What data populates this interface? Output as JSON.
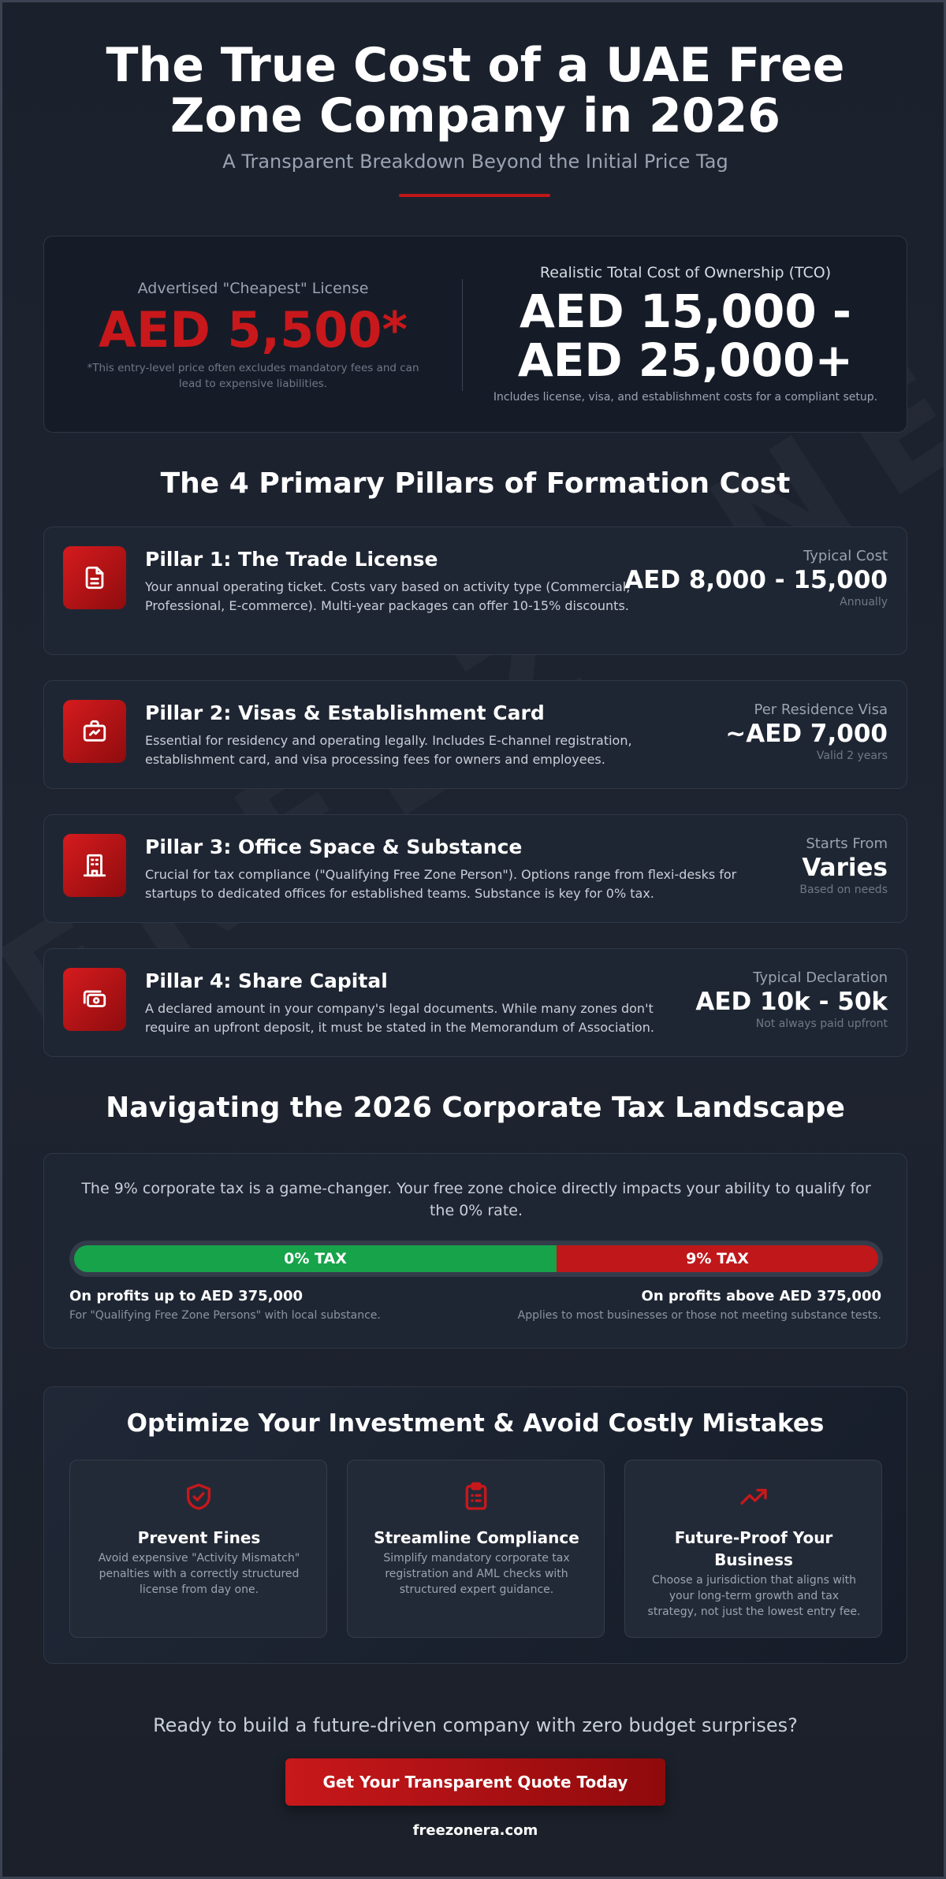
{
  "header": {
    "title": "The True Cost of a UAE Free Zone Company in 2026",
    "subtitle": "A Transparent Breakdown Beyond the Initial Price Tag"
  },
  "watermark": "FREEZONERA.COM",
  "comparison": {
    "advertised_label": "Advertised \"Cheapest\" License",
    "advertised_price": "AED 5,500*",
    "advertised_note": "*This entry-level price often excludes mandatory fees and can lead to expensive liabilities.",
    "tco_label": "Realistic Total Cost of Ownership (TCO)",
    "tco_price_line1": "AED 15,000 -",
    "tco_price_line2": "AED 25,000+",
    "tco_note": "Includes license, visa, and establishment costs for a compliant setup."
  },
  "pillars_section": {
    "title": "The 4 Primary Pillars of Formation Cost",
    "items": [
      {
        "icon": "document-icon",
        "name": "Pillar 1: The Trade License",
        "description": "Your annual operating ticket. Costs vary based on activity type (Commercial, Professional, E-commerce). Multi-year packages can offer 10-15% discounts.",
        "cost_label": "Typical Cost",
        "cost_value": "AED 8,000 - 15,000",
        "cost_note": "Annually"
      },
      {
        "icon": "passport-icon",
        "name": "Pillar 2: Visas & Establishment Card",
        "description": "Essential for residency and operating legally. Includes E-channel registration, establishment card, and visa processing fees for owners and employees.",
        "cost_label": "Per Residence Visa",
        "cost_value": "~AED 7,000",
        "cost_note": "Valid 2 years"
      },
      {
        "icon": "building-icon",
        "name": "Pillar 3: Office Space & Substance",
        "description": "Crucial for tax compliance (\"Qualifying Free Zone Person\"). Options range from flexi-desks for startups to dedicated offices for established teams. Substance is key for 0% tax.",
        "cost_label": "Starts From",
        "cost_value": "Varies",
        "cost_note": "Based on needs"
      },
      {
        "icon": "money-icon",
        "name": "Pillar 4: Share Capital",
        "description": "A declared amount in your company's legal documents. While many zones don't require an upfront deposit, it must be stated in the Memorandum of Association.",
        "cost_label": "Typical Declaration",
        "cost_value": "AED 10k - 50k",
        "cost_note": "Not always paid upfront"
      }
    ]
  },
  "tax_section": {
    "title": "Navigating the 2026 Corporate Tax Landscape",
    "intro": "The 9% corporate tax is a game-changer. Your free zone choice directly impacts your ability to qualify for the 0% rate.",
    "bar": {
      "zero_label": "0% TAX",
      "nine_label": "9% TAX",
      "zero_share": 0.6
    },
    "left_caption": "On profits up to AED 375,000",
    "left_sub": "For \"Qualifying Free Zone Persons\" with local substance.",
    "right_caption": "On profits above AED 375,000",
    "right_sub": "Applies to most businesses or those not meeting substance tests."
  },
  "optimize_section": {
    "title": "Optimize Your Investment & Avoid Costly Mistakes",
    "cards": [
      {
        "icon": "shield-check-icon",
        "name": "Prevent Fines",
        "description": "Avoid expensive \"Activity Mismatch\" penalties with a correctly structured license from day one."
      },
      {
        "icon": "clipboard-list-icon",
        "name": "Streamline Compliance",
        "description": "Simplify mandatory corporate tax registration and AML checks with structured expert guidance."
      },
      {
        "icon": "trending-up-icon",
        "name": "Future-Proof Your Business",
        "description": "Choose a jurisdiction that aligns with your long-term growth and tax strategy, not just the lowest entry fee."
      }
    ]
  },
  "cta": {
    "text": "Ready to build a future-driven company with zero budget surprises?",
    "button_label": "Get Your Transparent Quote Today",
    "site": "freezonera.com"
  },
  "colors": {
    "accent_red": "#c8181b",
    "tax_green": "#16a34a",
    "background": "#1c222d"
  }
}
